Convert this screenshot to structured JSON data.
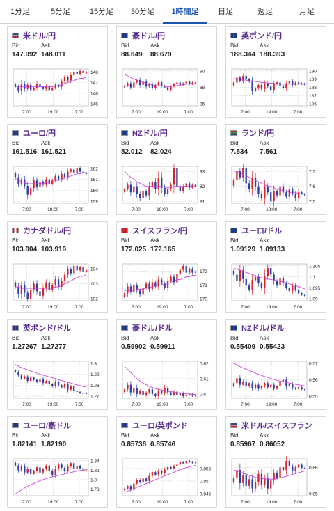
{
  "tabs": [
    {
      "label": "1分足"
    },
    {
      "label": "5分足"
    },
    {
      "label": "15分足"
    },
    {
      "label": "30分足"
    },
    {
      "label": "1時間足",
      "active": true
    },
    {
      "label": "日足"
    },
    {
      "label": "週足"
    },
    {
      "label": "月足"
    }
  ],
  "bid_label": "Bid",
  "ask_label": "Ask",
  "cards": [
    {
      "title": "米ドル/円",
      "flag": "us",
      "bid": "147.992",
      "ask": "148.011",
      "yticks": [
        "148",
        "147",
        "146",
        "145"
      ],
      "xticks": [
        "7:00",
        "19:00",
        "7:00"
      ],
      "closes": [
        146.6,
        146.2,
        146.9,
        146.4,
        146.8,
        146.3,
        146.5,
        146.9,
        146.6,
        146.4,
        146.7,
        146.3,
        146.5,
        146.8,
        146.6,
        147.1,
        147.5,
        147.2,
        147.7,
        148.0,
        147.8,
        148.1,
        147.9,
        148.0
      ],
      "ma": [
        146.7,
        146.6,
        146.6,
        146.6,
        146.6,
        146.6,
        146.6,
        146.6,
        146.6,
        146.6,
        146.6,
        146.6,
        146.6,
        146.7,
        146.7,
        146.8,
        146.9,
        147.0,
        147.1,
        147.2,
        147.3,
        147.4,
        147.4,
        147.5
      ]
    },
    {
      "title": "豪ドル/円",
      "flag": "au",
      "bid": "88.649",
      "ask": "88.679",
      "yticks": [
        "90",
        "88",
        "86"
      ],
      "xticks": [
        "7:00",
        "19:00",
        "7:00"
      ],
      "closes": [
        88.2,
        88.5,
        88.0,
        88.6,
        88.9,
        88.3,
        88.7,
        88.1,
        88.4,
        87.9,
        88.3,
        88.6,
        88.2,
        88.0,
        87.7,
        88.1,
        88.4,
        88.6,
        88.3,
        88.5,
        88.7,
        88.4,
        88.6,
        88.6
      ],
      "ma": [
        89.6,
        89.4,
        89.2,
        89.0,
        88.9,
        88.7,
        88.6,
        88.5,
        88.4,
        88.3,
        88.2,
        88.2,
        88.2,
        88.1,
        88.1,
        88.1,
        88.2,
        88.2,
        88.3,
        88.3,
        88.4,
        88.4,
        88.4,
        88.5
      ]
    },
    {
      "title": "英ポンド/円",
      "flag": "gb",
      "bid": "188.344",
      "ask": "188.393",
      "yticks": [
        "190",
        "189",
        "188",
        "187",
        "186"
      ],
      "xticks": [
        "7:00",
        "19:00",
        "7:00"
      ],
      "closes": [
        188.6,
        189.2,
        188.8,
        189.4,
        189.0,
        188.7,
        187.6,
        187.9,
        188.3,
        187.8,
        188.5,
        188.1,
        187.7,
        188.4,
        188.6,
        188.2,
        187.9,
        188.5,
        188.8,
        188.3,
        188.6,
        188.4,
        188.5,
        188.3
      ],
      "ma": [
        189.1,
        189.0,
        189.0,
        188.9,
        188.9,
        188.8,
        188.8,
        188.7,
        188.7,
        188.6,
        188.6,
        188.5,
        188.5,
        188.5,
        188.4,
        188.4,
        188.4,
        188.4,
        188.4,
        188.4,
        188.4,
        188.4,
        188.4,
        188.4
      ]
    },
    {
      "title": "ユーロ/円",
      "flag": "eu",
      "bid": "161.516",
      "ask": "161.521",
      "yticks": [
        "162",
        "161",
        "160",
        "159"
      ],
      "xticks": [
        "7:00",
        "19:00",
        "7:00"
      ],
      "closes": [
        161.2,
        160.6,
        161.0,
        160.4,
        159.6,
        160.2,
        160.9,
        160.3,
        160.8,
        160.5,
        161.0,
        160.6,
        160.9,
        161.3,
        161.0,
        161.5,
        161.2,
        161.7,
        161.9,
        161.6,
        162.0,
        161.7,
        161.6,
        161.5
      ],
      "ma": [
        161.0,
        160.9,
        160.8,
        160.7,
        160.6,
        160.6,
        160.6,
        160.6,
        160.6,
        160.6,
        160.7,
        160.7,
        160.8,
        160.9,
        160.9,
        161.0,
        161.1,
        161.2,
        161.3,
        161.4,
        161.5,
        161.5,
        161.6,
        161.6
      ]
    },
    {
      "title": "NZドル/円",
      "flag": "nz",
      "bid": "82.012",
      "ask": "82.024",
      "yticks": [
        "83",
        "82",
        "81"
      ],
      "xticks": [
        "7:00",
        "19:00",
        "7:00"
      ],
      "closes": [
        81.8,
        82.1,
        81.6,
        82.0,
        81.5,
        81.2,
        81.7,
        81.4,
        82.0,
        82.3,
        81.8,
        82.6,
        81.9,
        81.5,
        81.8,
        82.1,
        83.2,
        82.0,
        81.7,
        82.0,
        82.2,
        81.9,
        82.1,
        82.0
      ],
      "ma": [
        83.0,
        82.8,
        82.6,
        82.5,
        82.3,
        82.2,
        82.1,
        82.0,
        82.0,
        82.0,
        82.0,
        82.0,
        82.0,
        81.9,
        81.9,
        81.9,
        82.0,
        82.0,
        82.0,
        82.0,
        82.0,
        82.0,
        82.0,
        82.0
      ]
    },
    {
      "title": "ランド/円",
      "flag": "za",
      "bid": "7.534",
      "ask": "7.561",
      "yticks": [
        "7.7",
        "7.6",
        "7.5"
      ],
      "xticks": [
        "7:00",
        "19:00",
        "7:00"
      ],
      "closes": [
        7.64,
        7.7,
        7.66,
        7.72,
        7.62,
        7.58,
        7.66,
        7.6,
        7.55,
        7.52,
        7.6,
        7.56,
        7.5,
        7.57,
        7.54,
        7.6,
        7.56,
        7.53,
        7.58,
        7.55,
        7.52,
        7.56,
        7.55,
        7.54
      ],
      "ma": [
        7.7,
        7.7,
        7.69,
        7.68,
        7.67,
        7.66,
        7.65,
        7.64,
        7.63,
        7.62,
        7.61,
        7.6,
        7.6,
        7.59,
        7.58,
        7.58,
        7.57,
        7.57,
        7.56,
        7.56,
        7.56,
        7.55,
        7.55,
        7.55
      ]
    },
    {
      "title": "カナダドル/円",
      "flag": "ca",
      "bid": "103.904",
      "ask": "103.919",
      "yticks": [
        "104",
        "103",
        "102"
      ],
      "xticks": [
        "7:00",
        "19:00",
        "7:00"
      ],
      "closes": [
        102.8,
        102.3,
        102.9,
        102.4,
        102.0,
        102.6,
        103.0,
        102.5,
        102.2,
        102.7,
        103.1,
        102.6,
        102.9,
        103.3,
        102.8,
        103.2,
        103.6,
        104.0,
        103.7,
        104.2,
        103.9,
        104.1,
        103.8,
        103.9
      ],
      "ma": [
        102.8,
        102.8,
        102.7,
        102.7,
        102.7,
        102.7,
        102.7,
        102.7,
        102.7,
        102.7,
        102.7,
        102.7,
        102.7,
        102.8,
        102.8,
        102.9,
        103.0,
        103.1,
        103.2,
        103.3,
        103.4,
        103.5,
        103.5,
        103.6
      ]
    },
    {
      "title": "スイスフラン/円",
      "flag": "ch",
      "bid": "172.025",
      "ask": "172.165",
      "yticks": [
        "172",
        "171",
        "170"
      ],
      "xticks": [
        "7:00",
        "19:00",
        "7:00"
      ],
      "closes": [
        170.4,
        170.9,
        170.5,
        171.0,
        170.6,
        170.3,
        170.8,
        171.1,
        170.7,
        171.2,
        170.9,
        171.4,
        171.1,
        170.8,
        171.3,
        171.6,
        171.2,
        171.8,
        172.1,
        172.4,
        171.9,
        172.2,
        171.9,
        172.0
      ],
      "ma": [
        170.6,
        170.6,
        170.6,
        170.6,
        170.7,
        170.7,
        170.7,
        170.8,
        170.8,
        170.9,
        170.9,
        171.0,
        171.0,
        171.1,
        171.1,
        171.2,
        171.3,
        171.4,
        171.4,
        171.5,
        171.6,
        171.6,
        171.7,
        171.7
      ]
    },
    {
      "title": "ユーロ/ドル",
      "flag": "eu",
      "bid": "1.09129",
      "ask": "1.09133",
      "yticks": [
        "1.105",
        "1.1",
        "1.095",
        "1.09"
      ],
      "xticks": [
        "7:00",
        "19:00",
        "7:00"
      ],
      "closes": [
        1.101,
        1.098,
        1.103,
        1.099,
        1.096,
        1.094,
        1.0985,
        1.1,
        1.097,
        1.095,
        1.1005,
        1.104,
        1.101,
        1.098,
        1.096,
        1.0995,
        1.097,
        1.095,
        1.0935,
        1.096,
        1.094,
        1.0925,
        1.0918,
        1.0913
      ],
      "ma": [
        1.104,
        1.1035,
        1.103,
        1.1025,
        1.102,
        1.1015,
        1.101,
        1.1005,
        1.1,
        1.0995,
        1.0992,
        1.099,
        1.0988,
        1.0985,
        1.0982,
        1.098,
        1.0976,
        1.0972,
        1.0968,
        1.0964,
        1.096,
        1.0955,
        1.095,
        1.0945
      ]
    },
    {
      "title": "英ポンド/ドル",
      "flag": "gb",
      "bid": "1.27267",
      "ask": "1.27277",
      "yticks": [
        "1.3",
        "1.29",
        "1.28",
        "1.27"
      ],
      "xticks": [
        "7:00",
        "19:00",
        "7:00"
      ],
      "closes": [
        1.292,
        1.289,
        1.286,
        1.288,
        1.284,
        1.287,
        1.285,
        1.283,
        1.286,
        1.282,
        1.284,
        1.281,
        1.279,
        1.283,
        1.28,
        1.278,
        1.281,
        1.276,
        1.279,
        1.275,
        1.274,
        1.273,
        1.2728,
        1.2727
      ],
      "ma": [
        1.299,
        1.2975,
        1.296,
        1.295,
        1.294,
        1.293,
        1.292,
        1.291,
        1.29,
        1.2892,
        1.2884,
        1.2876,
        1.2868,
        1.286,
        1.2852,
        1.2844,
        1.2836,
        1.2828,
        1.282,
        1.2812,
        1.2804,
        1.2796,
        1.279,
        1.2784
      ]
    },
    {
      "title": "豪ドル/ドル",
      "flag": "au",
      "bid": "0.59902",
      "ask": "0.59911",
      "yticks": [
        "0.62",
        "0.61",
        "0.6"
      ],
      "xticks": [
        "7:00",
        "19:00",
        "7:00"
      ],
      "closes": [
        0.603,
        0.606,
        0.601,
        0.604,
        0.6,
        0.602,
        0.599,
        0.601,
        0.603,
        0.6,
        0.5985,
        0.602,
        0.6005,
        0.604,
        0.601,
        0.5995,
        0.6015,
        0.599,
        0.6005,
        0.5985,
        0.5995,
        0.6,
        0.5988,
        0.599
      ],
      "ma": [
        0.618,
        0.616,
        0.614,
        0.612,
        0.61,
        0.6085,
        0.6072,
        0.606,
        0.605,
        0.6042,
        0.6035,
        0.603,
        0.6026,
        0.6022,
        0.6018,
        0.6015,
        0.6012,
        0.6009,
        0.6006,
        0.6004,
        0.6002,
        0.6,
        0.5998,
        0.5996
      ]
    },
    {
      "title": "NZドル/ドル",
      "flag": "nz",
      "bid": "0.55409",
      "ask": "0.55423",
      "yticks": [
        "0.57",
        "0.56",
        "0.55"
      ],
      "xticks": [
        "7:00",
        "19:00",
        "7:00"
      ],
      "closes": [
        0.558,
        0.561,
        0.557,
        0.559,
        0.556,
        0.558,
        0.555,
        0.557,
        0.5545,
        0.556,
        0.558,
        0.5555,
        0.557,
        0.5545,
        0.556,
        0.559,
        0.56,
        0.556,
        0.5575,
        0.555,
        0.5545,
        0.5555,
        0.5542,
        0.5541
      ],
      "ma": [
        0.57,
        0.569,
        0.568,
        0.5672,
        0.5664,
        0.5656,
        0.5648,
        0.564,
        0.5633,
        0.5626,
        0.562,
        0.5614,
        0.5608,
        0.5602,
        0.5597,
        0.5592,
        0.5588,
        0.5584,
        0.558,
        0.5576,
        0.5572,
        0.5569,
        0.5566,
        0.5563
      ]
    },
    {
      "title": "ユーロ/豪ドル",
      "flag": "eu",
      "bid": "1.82141",
      "ask": "1.82190",
      "yticks": [
        "1.84",
        "1.82",
        "1.8",
        "1.78"
      ],
      "xticks": [
        "7:00",
        "19:00",
        "7:00"
      ],
      "closes": [
        1.83,
        1.82,
        1.828,
        1.815,
        1.823,
        1.812,
        1.818,
        1.826,
        1.815,
        1.822,
        1.83,
        1.818,
        1.81,
        1.823,
        1.832,
        1.825,
        1.818,
        1.828,
        1.835,
        1.822,
        1.829,
        1.824,
        1.821,
        1.8214
      ],
      "ma": [
        1.77,
        1.774,
        1.778,
        1.782,
        1.7855,
        1.789,
        1.792,
        1.795,
        1.7975,
        1.8,
        1.802,
        1.804,
        1.806,
        1.8075,
        1.809,
        1.8105,
        1.812,
        1.8135,
        1.815,
        1.8165,
        1.818,
        1.819,
        1.82,
        1.821
      ]
    },
    {
      "title": "ユーロ/英ポンド",
      "flag": "eu",
      "bid": "0.85738",
      "ask": "0.85746",
      "yticks": [
        "0.855",
        "0.85",
        "0.845"
      ],
      "xticks": [
        "7:00",
        "19:00",
        "7:00"
      ],
      "closes": [
        0.847,
        0.848,
        0.8465,
        0.849,
        0.8505,
        0.8495,
        0.851,
        0.85,
        0.852,
        0.8535,
        0.8525,
        0.854,
        0.853,
        0.8545,
        0.8555,
        0.855,
        0.856,
        0.8565,
        0.8575,
        0.857,
        0.858,
        0.8576,
        0.8572,
        0.8574
      ],
      "ma": [
        0.8455,
        0.846,
        0.8465,
        0.847,
        0.8475,
        0.848,
        0.8485,
        0.849,
        0.8495,
        0.85,
        0.8505,
        0.851,
        0.8515,
        0.852,
        0.8525,
        0.853,
        0.8535,
        0.854,
        0.8545,
        0.855,
        0.8553,
        0.8556,
        0.8559,
        0.8562
      ]
    },
    {
      "title": "米ドル/スイスフラン",
      "flag": "us",
      "bid": "0.85967",
      "ask": "0.86052",
      "yticks": [
        "0.86",
        "0.85"
      ],
      "xticks": [
        "7:00",
        "19:00",
        "7:00"
      ],
      "closes": [
        0.856,
        0.859,
        0.854,
        0.857,
        0.853,
        0.8555,
        0.852,
        0.8545,
        0.8575,
        0.8535,
        0.856,
        0.852,
        0.855,
        0.858,
        0.856,
        0.86,
        0.859,
        0.8625,
        0.8605,
        0.8585,
        0.86,
        0.861,
        0.8598,
        0.8597
      ],
      "ma": [
        0.859,
        0.8586,
        0.8582,
        0.8578,
        0.8574,
        0.857,
        0.8566,
        0.8562,
        0.856,
        0.8558,
        0.8556,
        0.8555,
        0.8555,
        0.8556,
        0.8558,
        0.856,
        0.8563,
        0.8566,
        0.857,
        0.8573,
        0.8576,
        0.858,
        0.8583,
        0.8586
      ]
    }
  ],
  "colors": {
    "up": "#d8242d",
    "down": "#2b3fa8",
    "ma": "#cc44dd",
    "title": "#5a2d91",
    "tabActive": "#1a56b0"
  }
}
